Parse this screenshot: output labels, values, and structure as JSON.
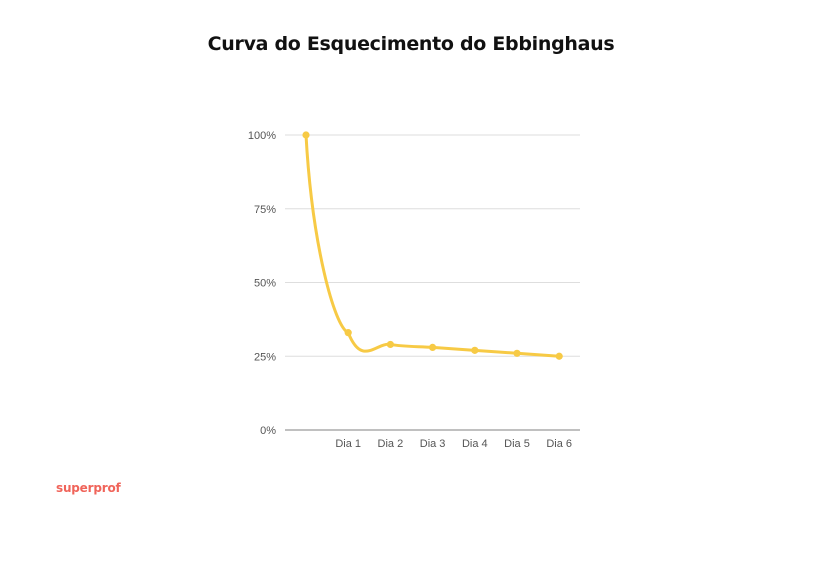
{
  "brand": {
    "name": "superprof",
    "color": "#f0645a"
  },
  "chart_data": {
    "type": "line",
    "title": "Curva do Esquecimento do Ebbinghaus",
    "categories": [
      "",
      "Dia 1",
      "Dia 2",
      "Dia 3",
      "Dia 4",
      "Dia 5",
      "Dia 6"
    ],
    "series": [
      {
        "values": [
          100,
          33,
          29,
          28,
          27,
          26,
          25
        ],
        "color": "#f7ca45"
      }
    ],
    "ylim": [
      0,
      100
    ],
    "yticks": [
      0,
      25,
      50,
      75,
      100
    ],
    "ytick_labels": [
      "0%",
      "25%",
      "50%",
      "75%",
      "100%"
    ],
    "grid": true,
    "curve": "smooth"
  }
}
